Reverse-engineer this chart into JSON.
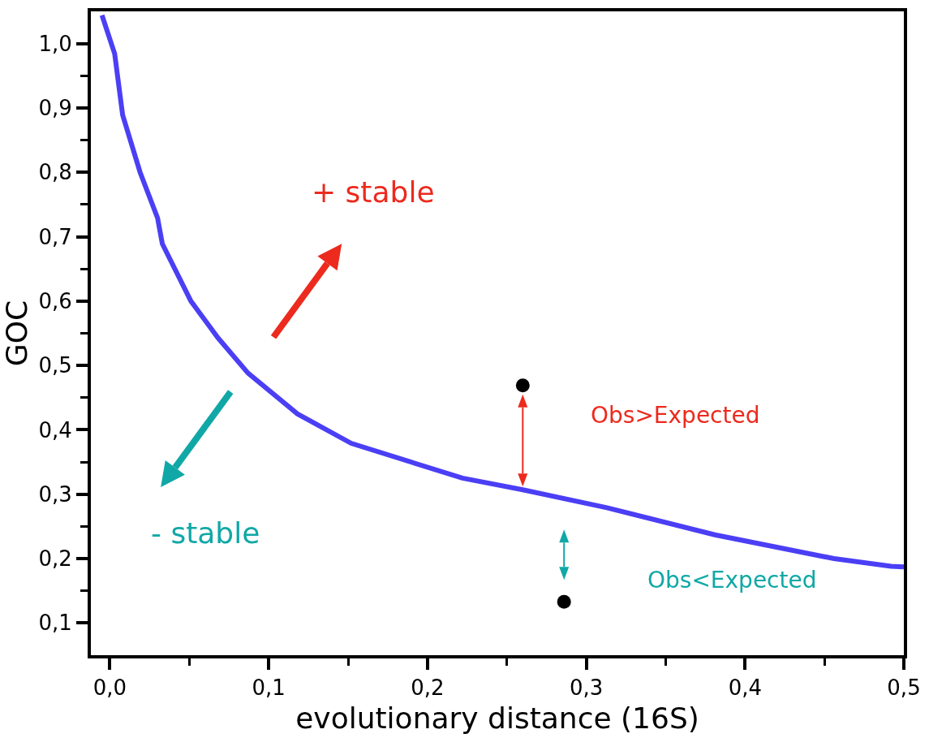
{
  "chart_data": {
    "type": "line",
    "xlabel": "evolutionary distance (16S)",
    "ylabel": "GOC",
    "xlim": [
      -0.012,
      0.5
    ],
    "ylim": [
      0.05,
      1.05
    ],
    "xticks": [
      {
        "value": 0,
        "label": "0,0"
      },
      {
        "value": 0.05,
        "label": null
      },
      {
        "value": 0.1,
        "label": "0,1"
      },
      {
        "value": 0.15,
        "label": null
      },
      {
        "value": 0.2,
        "label": "0,2"
      },
      {
        "value": 0.25,
        "label": null
      },
      {
        "value": 0.3,
        "label": "0,3"
      },
      {
        "value": 0.35,
        "label": null
      },
      {
        "value": 0.4,
        "label": "0,4"
      },
      {
        "value": 0.45,
        "label": null
      },
      {
        "value": 0.5,
        "label": "0,5"
      }
    ],
    "yticks": [
      {
        "value": 0.1,
        "label": "0,1"
      },
      {
        "value": 0.15,
        "label": null
      },
      {
        "value": 0.2,
        "label": "0,2"
      },
      {
        "value": 0.25,
        "label": null
      },
      {
        "value": 0.3,
        "label": "0,3"
      },
      {
        "value": 0.35,
        "label": null
      },
      {
        "value": 0.4,
        "label": "0,4"
      },
      {
        "value": 0.45,
        "label": null
      },
      {
        "value": 0.5,
        "label": "0,5"
      },
      {
        "value": 0.55,
        "label": null
      },
      {
        "value": 0.6,
        "label": "0,6"
      },
      {
        "value": 0.65,
        "label": null
      },
      {
        "value": 0.7,
        "label": "0,7"
      },
      {
        "value": 0.75,
        "label": null
      },
      {
        "value": 0.8,
        "label": "0,8"
      },
      {
        "value": 0.85,
        "label": null
      },
      {
        "value": 0.9,
        "label": "0,9"
      },
      {
        "value": 0.95,
        "label": null
      },
      {
        "value": 1.0,
        "label": "1,0"
      }
    ],
    "grid": false,
    "series": [
      {
        "color": "#4b3ff5",
        "marker": "none",
        "line_style": "solid",
        "x": [
          -0.005,
          0.003,
          0.008,
          0.019,
          0.03,
          0.033,
          0.051,
          0.068,
          0.087,
          0.118,
          0.152,
          0.222,
          0.26,
          0.313,
          0.381,
          0.456,
          0.492,
          0.5
        ],
        "values": [
          1.044,
          0.984,
          0.889,
          0.8,
          0.729,
          0.689,
          0.6,
          0.543,
          0.488,
          0.425,
          0.379,
          0.325,
          0.307,
          0.279,
          0.237,
          0.2,
          0.188,
          0.187
        ]
      },
      {
        "type": "scatter",
        "color": "#000000",
        "marker": "circle",
        "x": [
          0.26,
          0.286
        ],
        "values": [
          0.469,
          0.133
        ]
      }
    ],
    "annotations": [
      "+ stable",
      "- stable",
      "Obs>Expected",
      "Obs<Expected"
    ]
  }
}
